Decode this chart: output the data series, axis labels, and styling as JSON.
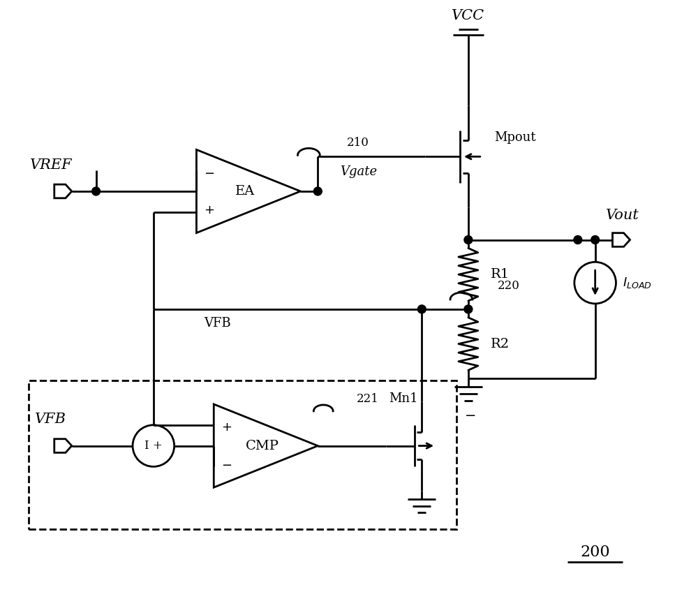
{
  "bg_color": "#ffffff",
  "line_color": "#000000",
  "lw": 2.0,
  "fig_w": 10.0,
  "fig_h": 8.48,
  "xlim": [
    0,
    10
  ],
  "ylim": [
    0,
    8.48
  ]
}
